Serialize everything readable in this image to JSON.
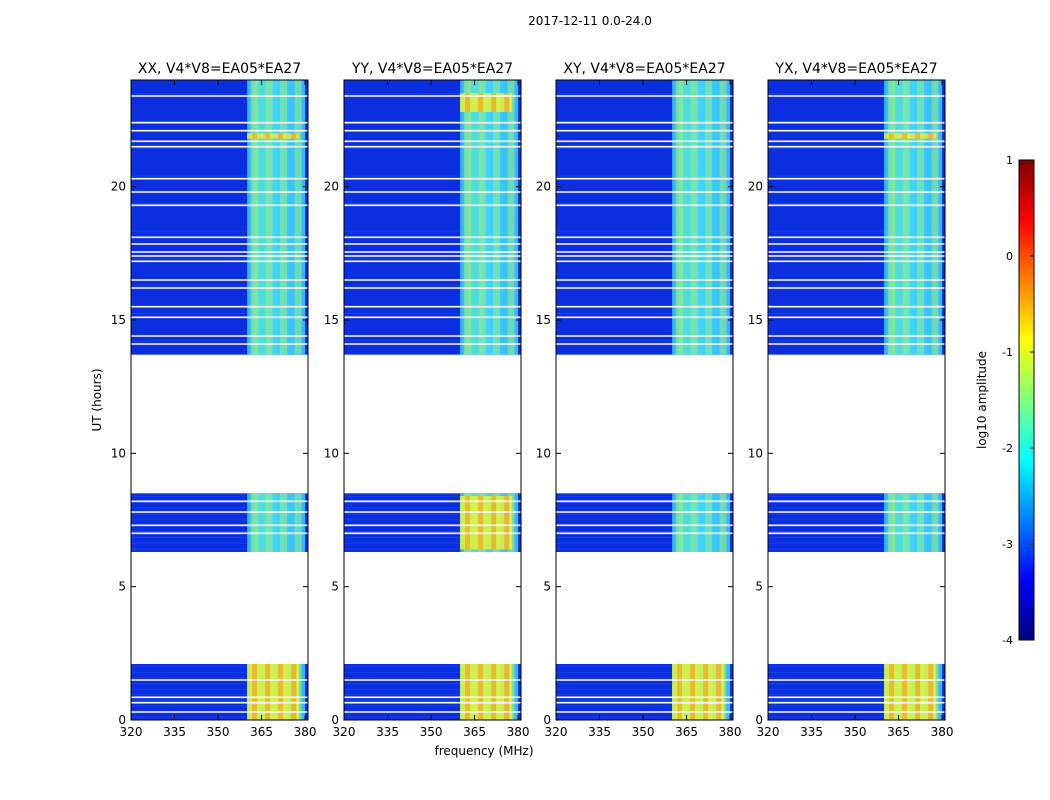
{
  "figure": {
    "suptitle": "2017-12-11 0.0-24.0"
  },
  "chart_data": {
    "type": "heatmap",
    "panels": [
      {
        "title": "XX, V4*V8=EA05*EA27",
        "strong_blocks": [
          [
            0.0,
            2.1
          ],
          [
            21.8,
            22.0
          ]
        ]
      },
      {
        "title": "YY, V4*V8=EA05*EA27",
        "strong_blocks": [
          [
            0.0,
            2.1
          ],
          [
            6.4,
            8.4
          ],
          [
            22.8,
            23.5
          ]
        ]
      },
      {
        "title": "XY, V4*V8=EA05*EA27",
        "strong_blocks": [
          [
            0.0,
            2.1
          ]
        ]
      },
      {
        "title": "YX, V4*V8=EA05*EA27",
        "strong_blocks": [
          [
            0.0,
            2.1
          ],
          [
            21.8,
            22.0
          ]
        ]
      }
    ],
    "xlabel": "frequency (MHz)",
    "ylabel": "UT (hours)",
    "xlim": [
      320,
      381
    ],
    "ylim": [
      0,
      24
    ],
    "x_ticks": [
      320,
      335,
      350,
      365,
      380
    ],
    "y_ticks": [
      0,
      5,
      10,
      15,
      20
    ],
    "data_segments_ut": [
      [
        0.0,
        2.1
      ],
      [
        6.3,
        8.5
      ],
      [
        13.7,
        24.0
      ]
    ],
    "blank_lines_ut": [
      0.3,
      0.65,
      0.85,
      1.5,
      7.0,
      7.3,
      7.8,
      8.2,
      14.1,
      14.4,
      15.1,
      15.5,
      16.2,
      16.5,
      17.2,
      17.4,
      17.55,
      17.85,
      18.1,
      19.3,
      19.8,
      20.3,
      21.5,
      21.7,
      22.1,
      22.4,
      23.4
    ],
    "band_start_mhz": 360,
    "band_end_mhz": 380,
    "colorbar": {
      "label": "log10 amplitude",
      "min": -4,
      "max": 1,
      "ticks": [
        -4,
        -3,
        -2,
        -1,
        0,
        1
      ],
      "colormap": [
        "#00007f",
        "#0000ff",
        "#007fff",
        "#00ffff",
        "#7fff7f",
        "#ffff00",
        "#ff7f00",
        "#ff0000",
        "#7f0000"
      ]
    }
  }
}
